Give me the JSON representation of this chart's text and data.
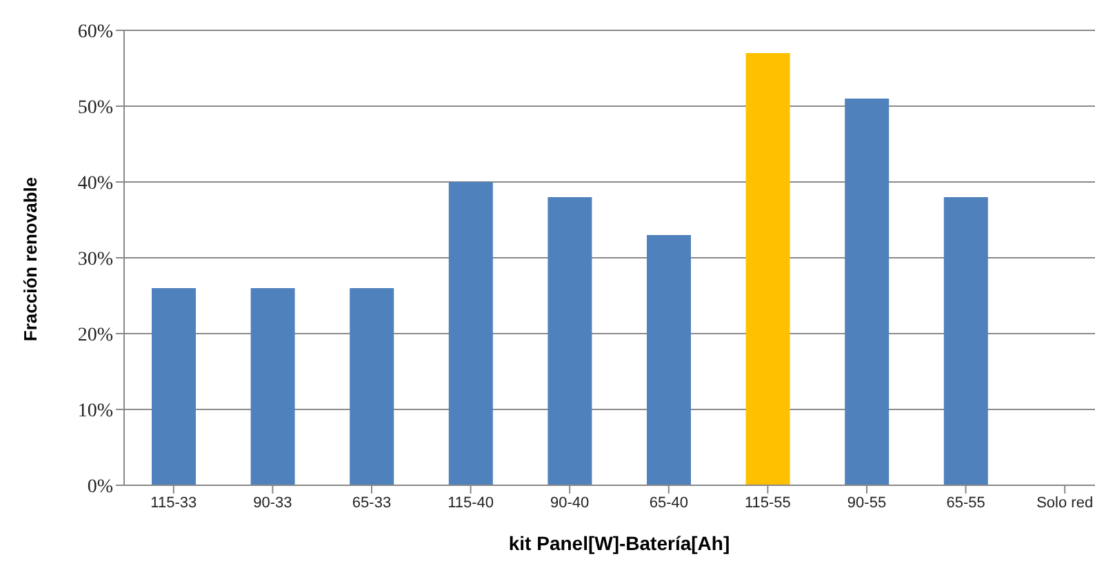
{
  "chart_data": {
    "type": "bar",
    "xlabel": "kit Panel[W]-Batería[Ah]",
    "ylabel": "Fracción renovable",
    "categories": [
      "115-33",
      "90-33",
      "65-33",
      "115-40",
      "90-40",
      "65-40",
      "115-55",
      "90-55",
      "65-55",
      "Solo red"
    ],
    "values": [
      26,
      26,
      26,
      40,
      38,
      33,
      57,
      51,
      38,
      null
    ],
    "colors": [
      "#4f81bd",
      "#4f81bd",
      "#4f81bd",
      "#4f81bd",
      "#4f81bd",
      "#4f81bd",
      "#ffc000",
      "#4f81bd",
      "#4f81bd",
      "#4f81bd"
    ],
    "ylim": [
      0,
      60
    ],
    "yticks": [
      {
        "value": 0,
        "label": "0%"
      },
      {
        "value": 10,
        "label": "10%"
      },
      {
        "value": 20,
        "label": "20%"
      },
      {
        "value": 30,
        "label": "30%"
      },
      {
        "value": 40,
        "label": "40%"
      },
      {
        "value": 50,
        "label": "50%"
      },
      {
        "value": 60,
        "label": "60%"
      }
    ],
    "grid": "y"
  }
}
